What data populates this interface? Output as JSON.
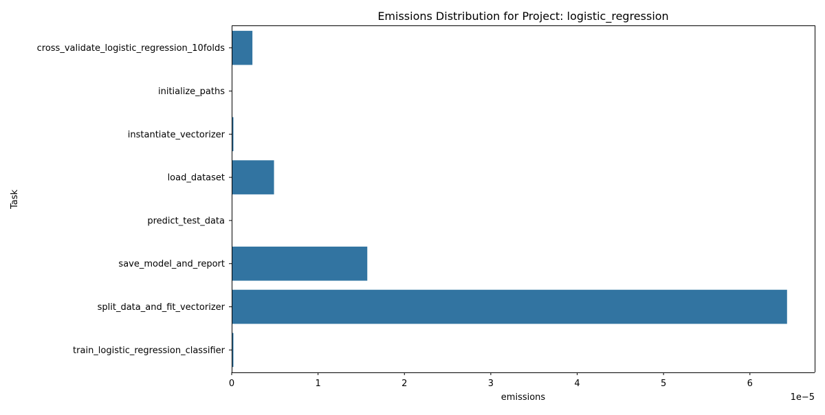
{
  "chart_data": {
    "type": "bar",
    "orientation": "horizontal",
    "title": "Emissions Distribution for Project: logistic_regression",
    "xlabel": "emissions",
    "ylabel": "Task",
    "x_offset_label": "1e−5",
    "x_scale_exponent": -5,
    "xlim": [
      0,
      6.75e-05
    ],
    "xticks": [
      0,
      1e-05,
      2e-05,
      3e-05,
      4e-05,
      5e-05,
      6e-05
    ],
    "xtick_labels": [
      "0",
      "1",
      "2",
      "3",
      "4",
      "5",
      "6"
    ],
    "grid": false,
    "legend": "none",
    "bar_color": "#3274a1",
    "categories": [
      "cross_validate_logistic_regression_10folds",
      "initialize_paths",
      "instantiate_vectorizer",
      "load_dataset",
      "predict_test_data",
      "save_model_and_report",
      "split_data_and_fit_vectorizer",
      "train_logistic_regression_classifier"
    ],
    "values": [
      2.4e-06,
      0.0,
      2e-07,
      4.9e-06,
      0.0,
      1.57e-05,
      6.43e-05,
      2e-07
    ]
  }
}
